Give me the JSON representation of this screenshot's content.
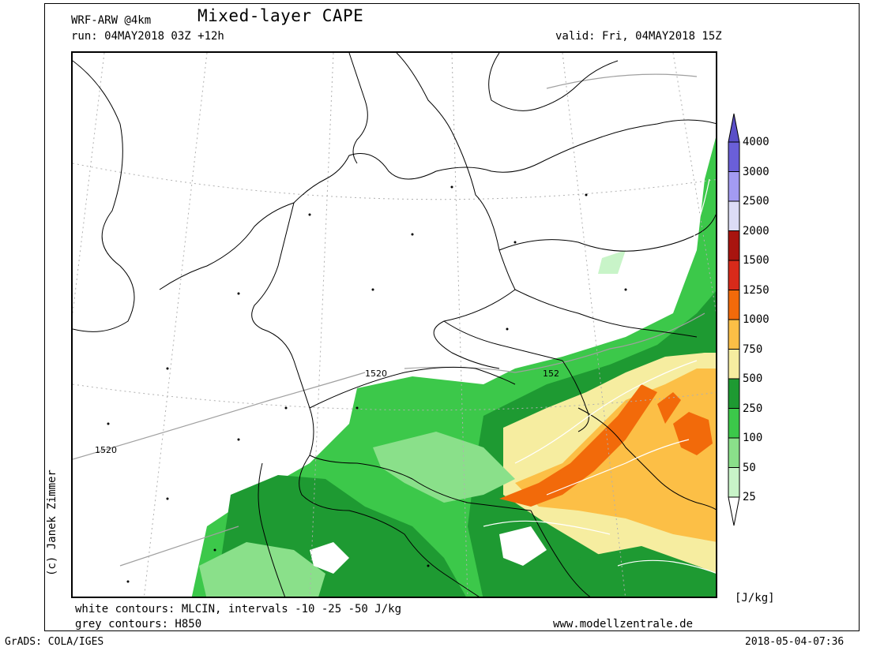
{
  "header": {
    "model": "WRF-ARW @4km",
    "title": "Mixed-layer CAPE",
    "run": "run: 04MAY2018 03Z +12h",
    "valid": "valid: Fri, 04MAY2018 15Z"
  },
  "footer": {
    "white_contours": "white contours: MLCIN, intervals -10 -25 -50 J/kg",
    "grey_contours": "grey contours: H850",
    "website": "www.modellzentrale.de",
    "grads": "GrADS: COLA/IGES",
    "timestamp": "2018-05-04-07:36"
  },
  "credit": "(c) Janek Zimmer",
  "map": {
    "contour_labels": [
      "1520",
      "1520",
      "152"
    ],
    "colors": {
      "land_border": "#000000",
      "grid": "#b0b0b0",
      "h850": "#a0a0a0",
      "mlcin": "#ffffff"
    }
  },
  "legend": {
    "unit": "[J/kg]",
    "levels": [
      {
        "label": "4000",
        "color": "#5a4fc8"
      },
      {
        "label": "3000",
        "color": "#6a5fd8"
      },
      {
        "label": "2500",
        "color": "#a39bf2"
      },
      {
        "label": "2000",
        "color": "#dcdcf6"
      },
      {
        "label": "1500",
        "color": "#a8140f"
      },
      {
        "label": "1250",
        "color": "#d82a1a"
      },
      {
        "label": "1000",
        "color": "#f26a0a"
      },
      {
        "label": "750",
        "color": "#fcbf46"
      },
      {
        "label": "500",
        "color": "#f6eda0"
      },
      {
        "label": "250",
        "color": "#1e9a32"
      },
      {
        "label": "100",
        "color": "#3cc84a"
      },
      {
        "label": "50",
        "color": "#8ae08a"
      },
      {
        "label": "25",
        "color": "#c8f4c8"
      }
    ],
    "lowest_color": "#ffffff"
  }
}
